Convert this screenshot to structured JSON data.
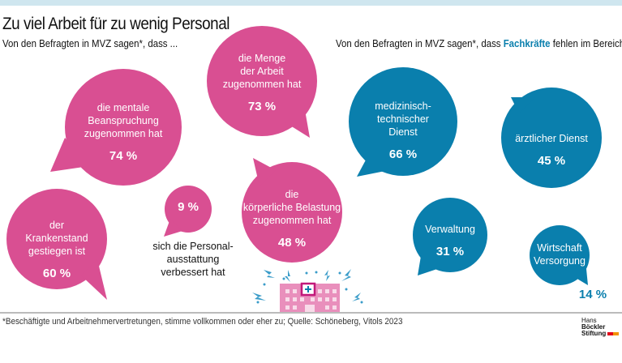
{
  "title": "Zu viel Arbeit für zu wenig Personal",
  "left_subtitle": "Von den Befragten in MVZ sagen*, dass ...",
  "right_subtitle": {
    "pre": "Von den Befragten in MVZ sagen*, dass ",
    "highlight": "Fachkräfte",
    "post": " fehlen im Bereich ..."
  },
  "colors": {
    "pink": "#d94f92",
    "blue": "#0a7fad",
    "highlight": "#0a7fad"
  },
  "chart_data": [
    {
      "type": "bubble",
      "title": "Von den Befragten in MVZ sagen*, dass ...",
      "unit": "%",
      "categories": [
        "die mentale Beanspruchung zugenommen hat",
        "die Menge der Arbeit zugenommen hat",
        "die körperliche Belastung zugenommen hat",
        "der Krankenstand gestiegen ist",
        "sich die Personalausstattung verbessert hat"
      ],
      "values": [
        74,
        73,
        48,
        60,
        9
      ],
      "color": "#d94f92"
    },
    {
      "type": "bubble",
      "title": "Von den Befragten in MVZ sagen*, dass Fachkräfte fehlen im Bereich ...",
      "unit": "%",
      "categories": [
        "medizinisch-technischer Dienst",
        "ärztlicher Dienst",
        "Verwaltung",
        "Wirtschaft Versorgung"
      ],
      "values": [
        66,
        45,
        31,
        14
      ],
      "color": "#0a7fad"
    }
  ],
  "labels": {
    "mental": [
      "die mentale",
      "Beanspruchung",
      "zugenommen hat"
    ],
    "mental_v": "74 %",
    "menge": [
      "die Menge",
      "der Arbeit",
      "zugenommen hat"
    ],
    "menge_v": "73 %",
    "koerper": [
      "die",
      "körperliche Belastung",
      "zugenommen hat"
    ],
    "koerper_v": "48 %",
    "krank": [
      "der",
      "Krankenstand",
      "gestiegen ist"
    ],
    "krank_v": "60 %",
    "personal_v": "9 %",
    "personal": [
      "sich die Personal-",
      "ausstattung",
      "verbessert hat"
    ],
    "medtech": [
      "medizinisch-",
      "technischer",
      "Dienst"
    ],
    "medtech_v": "66 %",
    "arzt": [
      "ärztlicher Dienst"
    ],
    "arzt_v": "45 %",
    "verw": [
      "Verwaltung"
    ],
    "verw_v": "31 %",
    "wirt": [
      "Wirtschaft",
      "Versorgung"
    ],
    "wirt_v": "14 %"
  },
  "footnote": "*Beschäftigte und Arbeitnehmervertretungen, stimme vollkommen oder eher zu; Quelle: Schöneberg, Vitols 2023",
  "logo": {
    "line1a": "Hans ",
    "line1b": "Böckler",
    "line2": "Stiftung"
  }
}
